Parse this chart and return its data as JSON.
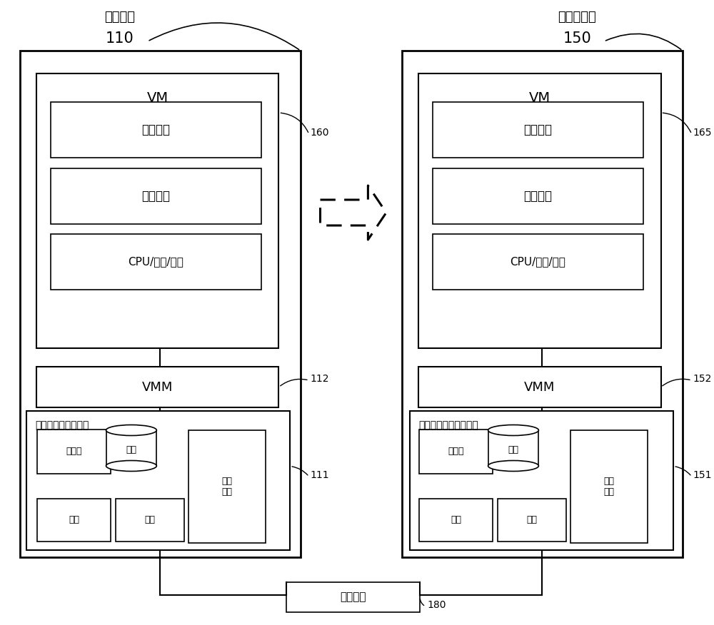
{
  "bg_color": "#ffffff",
  "font_color": "#000000",
  "source_server_label": "源服务器",
  "source_server_num": "110",
  "dest_server_label": "目的服务器",
  "dest_server_num": "150",
  "vm_label": "VM",
  "app_label": "应用程序",
  "os_label": "操作系统",
  "cpu_label": "CPU/内存/设备",
  "vmm_label": "VMM",
  "phys_src_label": "源服务器的物理设备",
  "phys_dst_label": "目的服务器的物理设备",
  "proc_label": "处理器",
  "disk_label": "磁盘",
  "other_label": "其他\n设备",
  "mem_label": "内存",
  "nic_label": "网卡",
  "internet_label": "互联网络",
  "label_160": "160",
  "label_165": "165",
  "label_112": "112",
  "label_111": "111",
  "label_152": "152",
  "label_151": "151",
  "label_180": "180"
}
